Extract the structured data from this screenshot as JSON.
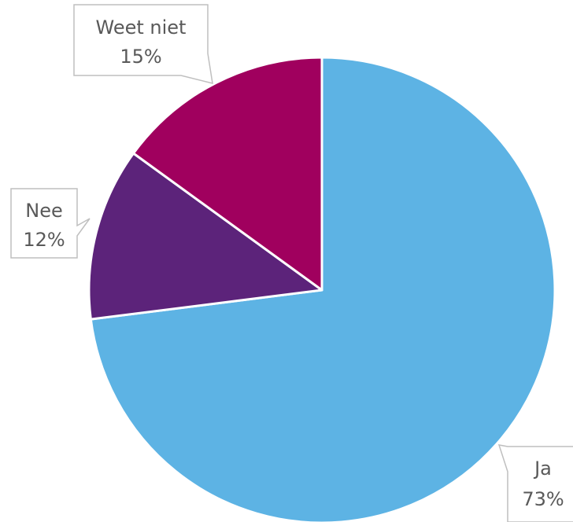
{
  "chart_data": {
    "type": "pie",
    "title": "",
    "slices": [
      {
        "key": "ja",
        "label": "Ja",
        "value": 73,
        "value_label": "73%",
        "color": "#5db3e4"
      },
      {
        "key": "nee",
        "label": "Nee",
        "value": 12,
        "value_label": "12%",
        "color": "#5c237a"
      },
      {
        "key": "weetniet",
        "label": "Weet niet",
        "value": 15,
        "value_label": "15%",
        "color": "#a0005e"
      }
    ],
    "slice_order": [
      "ja",
      "nee",
      "weetniet"
    ],
    "start_angle": "12 o'clock, clockwise",
    "slice_border_color": "#ffffff",
    "label_style": "callout boxes"
  }
}
